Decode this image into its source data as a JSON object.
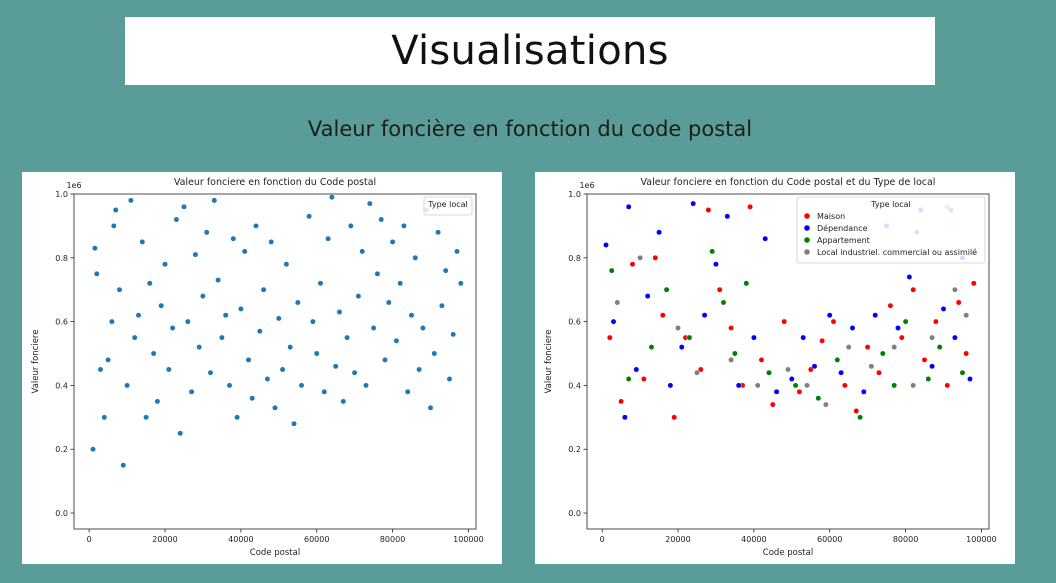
{
  "header": {
    "title": "Visualisations",
    "subtitle": "Valeur foncière en fonction du code postal"
  },
  "chart_data": [
    {
      "type": "scatter",
      "title": "Valeur fonciere en fonction du Code postal",
      "xlabel": "Code postal",
      "ylabel": "Valeur fonciere",
      "y_offset_label": "1e6",
      "xlim": [
        -4000,
        102000
      ],
      "ylim": [
        -0.05,
        1.0
      ],
      "xticks": [
        0,
        20000,
        40000,
        60000,
        80000,
        100000
      ],
      "xtick_labels": [
        "0",
        "20000",
        "40000",
        "60000",
        "80000",
        "100000"
      ],
      "yticks": [
        0.0,
        0.2,
        0.4,
        0.6,
        0.8,
        1.0
      ],
      "ytick_labels": [
        "0.0",
        "0.2",
        "0.4",
        "0.6",
        "0.8",
        "1.0"
      ],
      "legend": {
        "title": "Type local",
        "position": "top-right",
        "entries": []
      },
      "point_color": "#1f77b4",
      "series": [
        {
          "values": [
            [
              1000,
              0.2
            ],
            [
              1500,
              0.83
            ],
            [
              2000,
              0.75
            ],
            [
              3000,
              0.45
            ],
            [
              4000,
              0.3
            ],
            [
              5000,
              0.48
            ],
            [
              6000,
              0.6
            ],
            [
              6500,
              0.9
            ],
            [
              7000,
              0.95
            ],
            [
              8000,
              0.7
            ],
            [
              9000,
              0.15
            ],
            [
              10000,
              0.4
            ],
            [
              11000,
              0.98
            ],
            [
              12000,
              0.55
            ],
            [
              13000,
              0.62
            ],
            [
              14000,
              0.85
            ],
            [
              15000,
              0.3
            ],
            [
              16000,
              0.72
            ],
            [
              17000,
              0.5
            ],
            [
              18000,
              0.35
            ],
            [
              19000,
              0.65
            ],
            [
              20000,
              0.78
            ],
            [
              21000,
              0.45
            ],
            [
              22000,
              0.58
            ],
            [
              23000,
              0.92
            ],
            [
              24000,
              0.25
            ],
            [
              25000,
              0.96
            ],
            [
              26000,
              0.6
            ],
            [
              27000,
              0.38
            ],
            [
              28000,
              0.81
            ],
            [
              29000,
              0.52
            ],
            [
              30000,
              0.68
            ],
            [
              31000,
              0.88
            ],
            [
              32000,
              0.44
            ],
            [
              33000,
              0.98
            ],
            [
              34000,
              0.73
            ],
            [
              35000,
              0.55
            ],
            [
              36000,
              0.62
            ],
            [
              37000,
              0.4
            ],
            [
              38000,
              0.86
            ],
            [
              39000,
              0.3
            ],
            [
              40000,
              0.64
            ],
            [
              41000,
              0.82
            ],
            [
              42000,
              0.48
            ],
            [
              43000,
              0.36
            ],
            [
              44000,
              0.9
            ],
            [
              45000,
              0.57
            ],
            [
              46000,
              0.7
            ],
            [
              47000,
              0.42
            ],
            [
              48000,
              0.85
            ],
            [
              49000,
              0.33
            ],
            [
              50000,
              0.61
            ],
            [
              51000,
              0.45
            ],
            [
              52000,
              0.78
            ],
            [
              53000,
              0.52
            ],
            [
              54000,
              0.28
            ],
            [
              55000,
              0.66
            ],
            [
              56000,
              0.4
            ],
            [
              58000,
              0.93
            ],
            [
              59000,
              0.6
            ],
            [
              60000,
              0.5
            ],
            [
              61000,
              0.72
            ],
            [
              62000,
              0.38
            ],
            [
              63000,
              0.86
            ],
            [
              64000,
              0.99
            ],
            [
              65000,
              0.46
            ],
            [
              66000,
              0.63
            ],
            [
              67000,
              0.35
            ],
            [
              68000,
              0.55
            ],
            [
              69000,
              0.9
            ],
            [
              70000,
              0.44
            ],
            [
              71000,
              0.68
            ],
            [
              72000,
              0.82
            ],
            [
              73000,
              0.4
            ],
            [
              74000,
              0.97
            ],
            [
              75000,
              0.58
            ],
            [
              76000,
              0.75
            ],
            [
              77000,
              0.92
            ],
            [
              78000,
              0.48
            ],
            [
              79000,
              0.66
            ],
            [
              80000,
              0.85
            ],
            [
              81000,
              0.54
            ],
            [
              82000,
              0.72
            ],
            [
              83000,
              0.9
            ],
            [
              84000,
              0.38
            ],
            [
              85000,
              0.62
            ],
            [
              86000,
              0.8
            ],
            [
              87000,
              0.45
            ],
            [
              88000,
              0.58
            ],
            [
              89000,
              0.95
            ],
            [
              90000,
              0.33
            ],
            [
              91000,
              0.5
            ],
            [
              92000,
              0.88
            ],
            [
              93000,
              0.65
            ],
            [
              94000,
              0.76
            ],
            [
              95000,
              0.42
            ],
            [
              96000,
              0.56
            ],
            [
              97000,
              0.82
            ],
            [
              98000,
              0.72
            ]
          ]
        }
      ]
    },
    {
      "type": "scatter",
      "title": "Valeur fonciere en fonction du Code postal et du Type de local",
      "xlabel": "Code postal",
      "ylabel": "Valeur fonciere",
      "y_offset_label": "1e6",
      "xlim": [
        -4000,
        102000
      ],
      "ylim": [
        -0.05,
        1.0
      ],
      "xticks": [
        0,
        20000,
        40000,
        60000,
        80000,
        100000
      ],
      "xtick_labels": [
        "0",
        "20000",
        "40000",
        "60000",
        "80000",
        "100000"
      ],
      "yticks": [
        0.0,
        0.2,
        0.4,
        0.6,
        0.8,
        1.0
      ],
      "ytick_labels": [
        "0.0",
        "0.2",
        "0.4",
        "0.6",
        "0.8",
        "1.0"
      ],
      "legend": {
        "title": "Type local",
        "position": "top-right",
        "entries": [
          "Maison",
          "Dépendance",
          "Appartement",
          "Local industriel. commercial ou assimilé"
        ]
      },
      "series": [
        {
          "name": "Maison",
          "color": "#ff0000",
          "values": [
            [
              2000,
              0.55
            ],
            [
              5000,
              0.35
            ],
            [
              8000,
              0.78
            ],
            [
              11000,
              0.42
            ],
            [
              14000,
              0.8
            ],
            [
              16000,
              0.62
            ],
            [
              19000,
              0.3
            ],
            [
              22000,
              0.55
            ],
            [
              26000,
              0.45
            ],
            [
              28000,
              0.95
            ],
            [
              31000,
              0.7
            ],
            [
              34000,
              0.58
            ],
            [
              37000,
              0.4
            ],
            [
              39000,
              0.96
            ],
            [
              42000,
              0.48
            ],
            [
              45000,
              0.34
            ],
            [
              48000,
              0.6
            ],
            [
              52000,
              0.38
            ],
            [
              55000,
              0.45
            ],
            [
              58000,
              0.54
            ],
            [
              61000,
              0.6
            ],
            [
              64000,
              0.4
            ],
            [
              67000,
              0.32
            ],
            [
              70000,
              0.52
            ],
            [
              73000,
              0.44
            ],
            [
              76000,
              0.65
            ],
            [
              79000,
              0.55
            ],
            [
              82000,
              0.7
            ],
            [
              85000,
              0.48
            ],
            [
              88000,
              0.6
            ],
            [
              91000,
              0.4
            ],
            [
              94000,
              0.66
            ],
            [
              96000,
              0.5
            ],
            [
              98000,
              0.72
            ]
          ]
        },
        {
          "name": "Dépendance",
          "color": "#0000ff",
          "values": [
            [
              1000,
              0.84
            ],
            [
              3000,
              0.6
            ],
            [
              6000,
              0.3
            ],
            [
              7000,
              0.96
            ],
            [
              9000,
              0.45
            ],
            [
              12000,
              0.68
            ],
            [
              15000,
              0.88
            ],
            [
              18000,
              0.4
            ],
            [
              21000,
              0.52
            ],
            [
              24000,
              0.97
            ],
            [
              27000,
              0.62
            ],
            [
              30000,
              0.78
            ],
            [
              33000,
              0.93
            ],
            [
              36000,
              0.4
            ],
            [
              40000,
              0.55
            ],
            [
              43000,
              0.86
            ],
            [
              46000,
              0.38
            ],
            [
              50000,
              0.42
            ],
            [
              53000,
              0.55
            ],
            [
              56000,
              0.46
            ],
            [
              60000,
              0.62
            ],
            [
              63000,
              0.44
            ],
            [
              66000,
              0.58
            ],
            [
              69000,
              0.38
            ],
            [
              72000,
              0.62
            ],
            [
              75000,
              0.9
            ],
            [
              78000,
              0.58
            ],
            [
              81000,
              0.74
            ],
            [
              84000,
              0.95
            ],
            [
              87000,
              0.46
            ],
            [
              90000,
              0.64
            ],
            [
              93000,
              0.55
            ],
            [
              95000,
              0.8
            ],
            [
              97000,
              0.42
            ]
          ]
        },
        {
          "name": "Appartement",
          "color": "#008000",
          "values": [
            [
              2500,
              0.76
            ],
            [
              7000,
              0.42
            ],
            [
              13000,
              0.52
            ],
            [
              17000,
              0.7
            ],
            [
              23000,
              0.55
            ],
            [
              29000,
              0.82
            ],
            [
              32000,
              0.66
            ],
            [
              35000,
              0.5
            ],
            [
              38000,
              0.72
            ],
            [
              44000,
              0.44
            ],
            [
              51000,
              0.4
            ],
            [
              57000,
              0.36
            ],
            [
              62000,
              0.48
            ],
            [
              68000,
              0.3
            ],
            [
              74000,
              0.5
            ],
            [
              77000,
              0.4
            ],
            [
              80000,
              0.6
            ],
            [
              83000,
              0.88
            ],
            [
              86000,
              0.42
            ],
            [
              89000,
              0.52
            ],
            [
              92000,
              0.95
            ],
            [
              95000,
              0.44
            ]
          ]
        },
        {
          "name": "Local industriel. commercial ou assimilé",
          "color": "#808080",
          "values": [
            [
              4000,
              0.66
            ],
            [
              10000,
              0.8
            ],
            [
              20000,
              0.58
            ],
            [
              25000,
              0.44
            ],
            [
              34000,
              0.48
            ],
            [
              41000,
              0.4
            ],
            [
              49000,
              0.45
            ],
            [
              54000,
              0.4
            ],
            [
              59000,
              0.34
            ],
            [
              65000,
              0.52
            ],
            [
              71000,
              0.46
            ],
            [
              77000,
              0.52
            ],
            [
              82000,
              0.4
            ],
            [
              87000,
              0.55
            ],
            [
              91000,
              0.96
            ],
            [
              93000,
              0.7
            ],
            [
              96000,
              0.62
            ]
          ]
        }
      ]
    }
  ]
}
